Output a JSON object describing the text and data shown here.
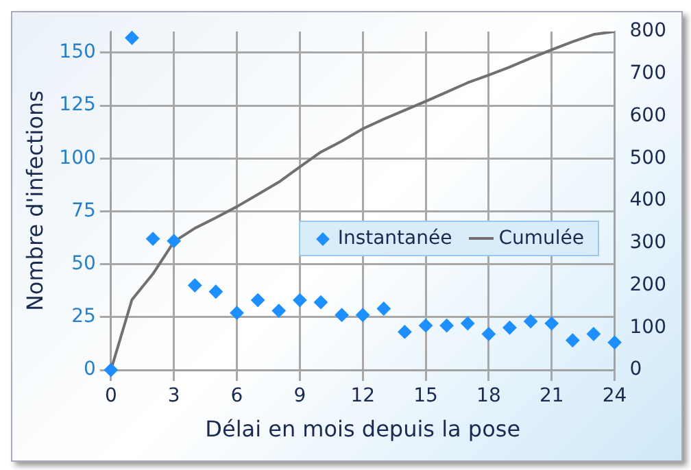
{
  "chart_data": {
    "type": "scatter",
    "xlabel": "Délai en mois depuis la pose",
    "ylabel": "Nombre d'infections",
    "x": [
      0,
      1,
      2,
      3,
      4,
      5,
      6,
      7,
      8,
      9,
      10,
      11,
      12,
      13,
      14,
      15,
      16,
      17,
      18,
      19,
      20,
      21,
      22,
      23,
      24
    ],
    "series": [
      {
        "name": "Instantanée",
        "color": "#1e8fff",
        "marker": "diamond",
        "values": [
          0,
          157,
          62,
          61,
          40,
          37,
          27,
          33,
          28,
          33,
          32,
          26,
          26,
          29,
          18,
          21,
          21,
          22,
          17,
          20,
          23,
          22,
          14,
          17,
          13
        ]
      },
      {
        "name": "Cumulée",
        "type": "line",
        "axis": "y2",
        "color": "#707070",
        "marker": "none",
        "line_style": "solid",
        "values": [
          0,
          166,
          227,
          303,
          335,
          360,
          386,
          415,
          444,
          480,
          515,
          541,
          570,
          593,
          614,
          635,
          657,
          679,
          697,
          716,
          737,
          757,
          776,
          793,
          800
        ]
      }
    ],
    "xlim": [
      0,
      24
    ],
    "xticks": [
      0,
      3,
      6,
      9,
      12,
      15,
      18,
      21,
      24
    ],
    "ylim": [
      0,
      160
    ],
    "yticks": [
      0,
      25,
      50,
      75,
      100,
      125,
      150
    ],
    "y2lim": [
      0,
      800
    ],
    "y2ticks": [
      0,
      100,
      200,
      300,
      400,
      500,
      600,
      700,
      800
    ],
    "grid": true,
    "legend": "right"
  }
}
